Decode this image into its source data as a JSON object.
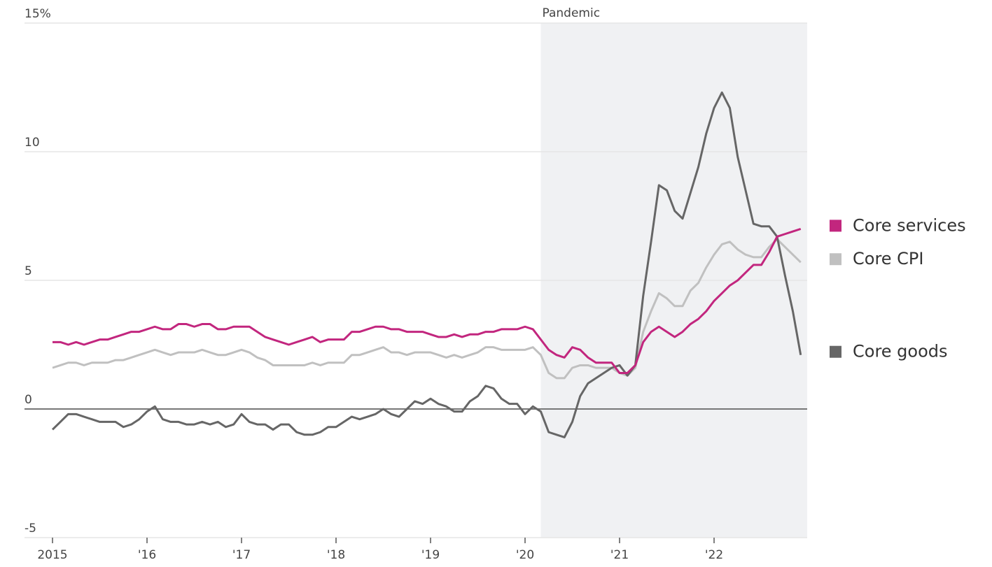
{
  "chart_data": {
    "type": "line",
    "categories": [
      "2015",
      null,
      null,
      null,
      null,
      null,
      null,
      null,
      null,
      null,
      null,
      null,
      "'16",
      null,
      null,
      null,
      null,
      null,
      null,
      null,
      null,
      null,
      null,
      null,
      "'17",
      null,
      null,
      null,
      null,
      null,
      null,
      null,
      null,
      null,
      null,
      null,
      "'18",
      null,
      null,
      null,
      null,
      null,
      null,
      null,
      null,
      null,
      null,
      null,
      "'19",
      null,
      null,
      null,
      null,
      null,
      null,
      null,
      null,
      null,
      null,
      null,
      "'20",
      null,
      null,
      null,
      null,
      null,
      null,
      null,
      null,
      null,
      null,
      null,
      "'21",
      null,
      null,
      null,
      null,
      null,
      null,
      null,
      null,
      null,
      null,
      null,
      "'22",
      null,
      null,
      null,
      null,
      null,
      null,
      null,
      null,
      null,
      null,
      null
    ],
    "series": [
      {
        "name": "Core services",
        "color": "#c2267e",
        "values": [
          2.6,
          2.6,
          2.5,
          2.6,
          2.5,
          2.6,
          2.7,
          2.7,
          2.8,
          2.9,
          3.0,
          3.0,
          3.1,
          3.2,
          3.1,
          3.1,
          3.3,
          3.3,
          3.2,
          3.3,
          3.3,
          3.1,
          3.1,
          3.2,
          3.2,
          3.2,
          3.0,
          2.8,
          2.7,
          2.6,
          2.5,
          2.6,
          2.7,
          2.8,
          2.6,
          2.7,
          2.7,
          2.7,
          3.0,
          3.0,
          3.1,
          3.2,
          3.2,
          3.1,
          3.1,
          3.0,
          3.0,
          3.0,
          2.9,
          2.8,
          2.8,
          2.9,
          2.8,
          2.9,
          2.9,
          3.0,
          3.0,
          3.1,
          3.1,
          3.1,
          3.2,
          3.1,
          2.7,
          2.3,
          2.1,
          2.0,
          2.4,
          2.3,
          2.0,
          1.8,
          1.8,
          1.8,
          1.4,
          1.4,
          1.7,
          2.6,
          3.0,
          3.2,
          3.0,
          2.8,
          3.0,
          3.3,
          3.5,
          3.8,
          4.2,
          4.5,
          4.8,
          5.0,
          5.3,
          5.6,
          5.6,
          6.1,
          6.7,
          6.8,
          6.9,
          7.0
        ]
      },
      {
        "name": "Core CPI",
        "color": "#c0c0c0",
        "values": [
          1.6,
          1.7,
          1.8,
          1.8,
          1.7,
          1.8,
          1.8,
          1.8,
          1.9,
          1.9,
          2.0,
          2.1,
          2.2,
          2.3,
          2.2,
          2.1,
          2.2,
          2.2,
          2.2,
          2.3,
          2.2,
          2.1,
          2.1,
          2.2,
          2.3,
          2.2,
          2.0,
          1.9,
          1.7,
          1.7,
          1.7,
          1.7,
          1.7,
          1.8,
          1.7,
          1.8,
          1.8,
          1.8,
          2.1,
          2.1,
          2.2,
          2.3,
          2.4,
          2.2,
          2.2,
          2.1,
          2.2,
          2.2,
          2.2,
          2.1,
          2.0,
          2.1,
          2.0,
          2.1,
          2.2,
          2.4,
          2.4,
          2.3,
          2.3,
          2.3,
          2.3,
          2.4,
          2.1,
          1.4,
          1.2,
          1.2,
          1.6,
          1.7,
          1.7,
          1.6,
          1.6,
          1.6,
          1.4,
          1.3,
          1.6,
          3.0,
          3.8,
          4.5,
          4.3,
          4.0,
          4.0,
          4.6,
          4.9,
          5.5,
          6.0,
          6.4,
          6.5,
          6.2,
          6.0,
          5.9,
          5.9,
          6.3,
          6.6,
          6.3,
          6.0,
          5.7
        ]
      },
      {
        "name": "Core goods",
        "color": "#666666",
        "values": [
          -0.8,
          -0.5,
          -0.2,
          -0.2,
          -0.3,
          -0.4,
          -0.5,
          -0.5,
          -0.5,
          -0.7,
          -0.6,
          -0.4,
          -0.1,
          0.1,
          -0.4,
          -0.5,
          -0.5,
          -0.6,
          -0.6,
          -0.5,
          -0.6,
          -0.5,
          -0.7,
          -0.6,
          -0.2,
          -0.5,
          -0.6,
          -0.6,
          -0.8,
          -0.6,
          -0.6,
          -0.9,
          -1.0,
          -1.0,
          -0.9,
          -0.7,
          -0.7,
          -0.5,
          -0.3,
          -0.4,
          -0.3,
          -0.2,
          0.0,
          -0.2,
          -0.3,
          0.0,
          0.3,
          0.2,
          0.4,
          0.2,
          0.1,
          -0.1,
          -0.1,
          0.3,
          0.5,
          0.9,
          0.8,
          0.4,
          0.2,
          0.2,
          -0.2,
          0.1,
          -0.1,
          -0.9,
          -1.0,
          -1.1,
          -0.5,
          0.5,
          1.0,
          1.2,
          1.4,
          1.6,
          1.7,
          1.3,
          1.7,
          4.4,
          6.5,
          8.7,
          8.5,
          7.7,
          7.4,
          8.4,
          9.4,
          10.7,
          11.7,
          12.3,
          11.7,
          9.8,
          8.5,
          7.2,
          7.1,
          7.1,
          6.7,
          5.2,
          3.8,
          2.1
        ]
      }
    ],
    "shade": {
      "label": "Pandemic",
      "start": 62
    },
    "ylim": [
      -5,
      15
    ],
    "yticks": [
      -5,
      0,
      5,
      10,
      {
        "value": 15,
        "label": "15%"
      }
    ],
    "grid": true
  }
}
